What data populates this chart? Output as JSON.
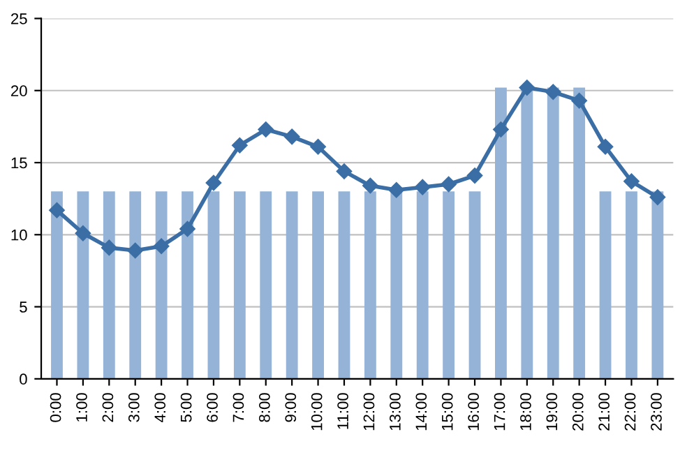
{
  "chart_data": {
    "type": "bar",
    "categories": [
      "0:00",
      "1:00",
      "2:00",
      "3:00",
      "4:00",
      "5:00",
      "6:00",
      "7:00",
      "8:00",
      "9:00",
      "10:00",
      "11:00",
      "12:00",
      "13:00",
      "14:00",
      "15:00",
      "16:00",
      "17:00",
      "18:00",
      "19:00",
      "20:00",
      "21:00",
      "22:00",
      "23:00"
    ],
    "series": [
      {
        "color": "#95b3d7",
        "values": [
          13,
          13,
          13,
          13,
          13,
          13,
          13,
          13,
          13,
          13,
          13,
          13,
          13,
          13,
          13,
          13,
          13,
          20.2,
          20.2,
          20.2,
          20.2,
          13,
          13,
          13
        ]
      },
      {
        "type": "line",
        "color": "#3a6ea5",
        "values": [
          11.7,
          10.1,
          9.1,
          8.9,
          9.2,
          10.4,
          13.6,
          16.2,
          17.3,
          16.8,
          16.1,
          14.4,
          13.4,
          13.1,
          13.3,
          13.5,
          14.1,
          17.3,
          20.2,
          19.9,
          19.3,
          16.1,
          13.7,
          12.6
        ]
      }
    ],
    "ylim": [
      0,
      25
    ],
    "yticks": [
      0,
      5,
      10,
      15,
      20,
      25
    ],
    "grid": "y",
    "marker": "diamond",
    "line_style": "solid"
  }
}
